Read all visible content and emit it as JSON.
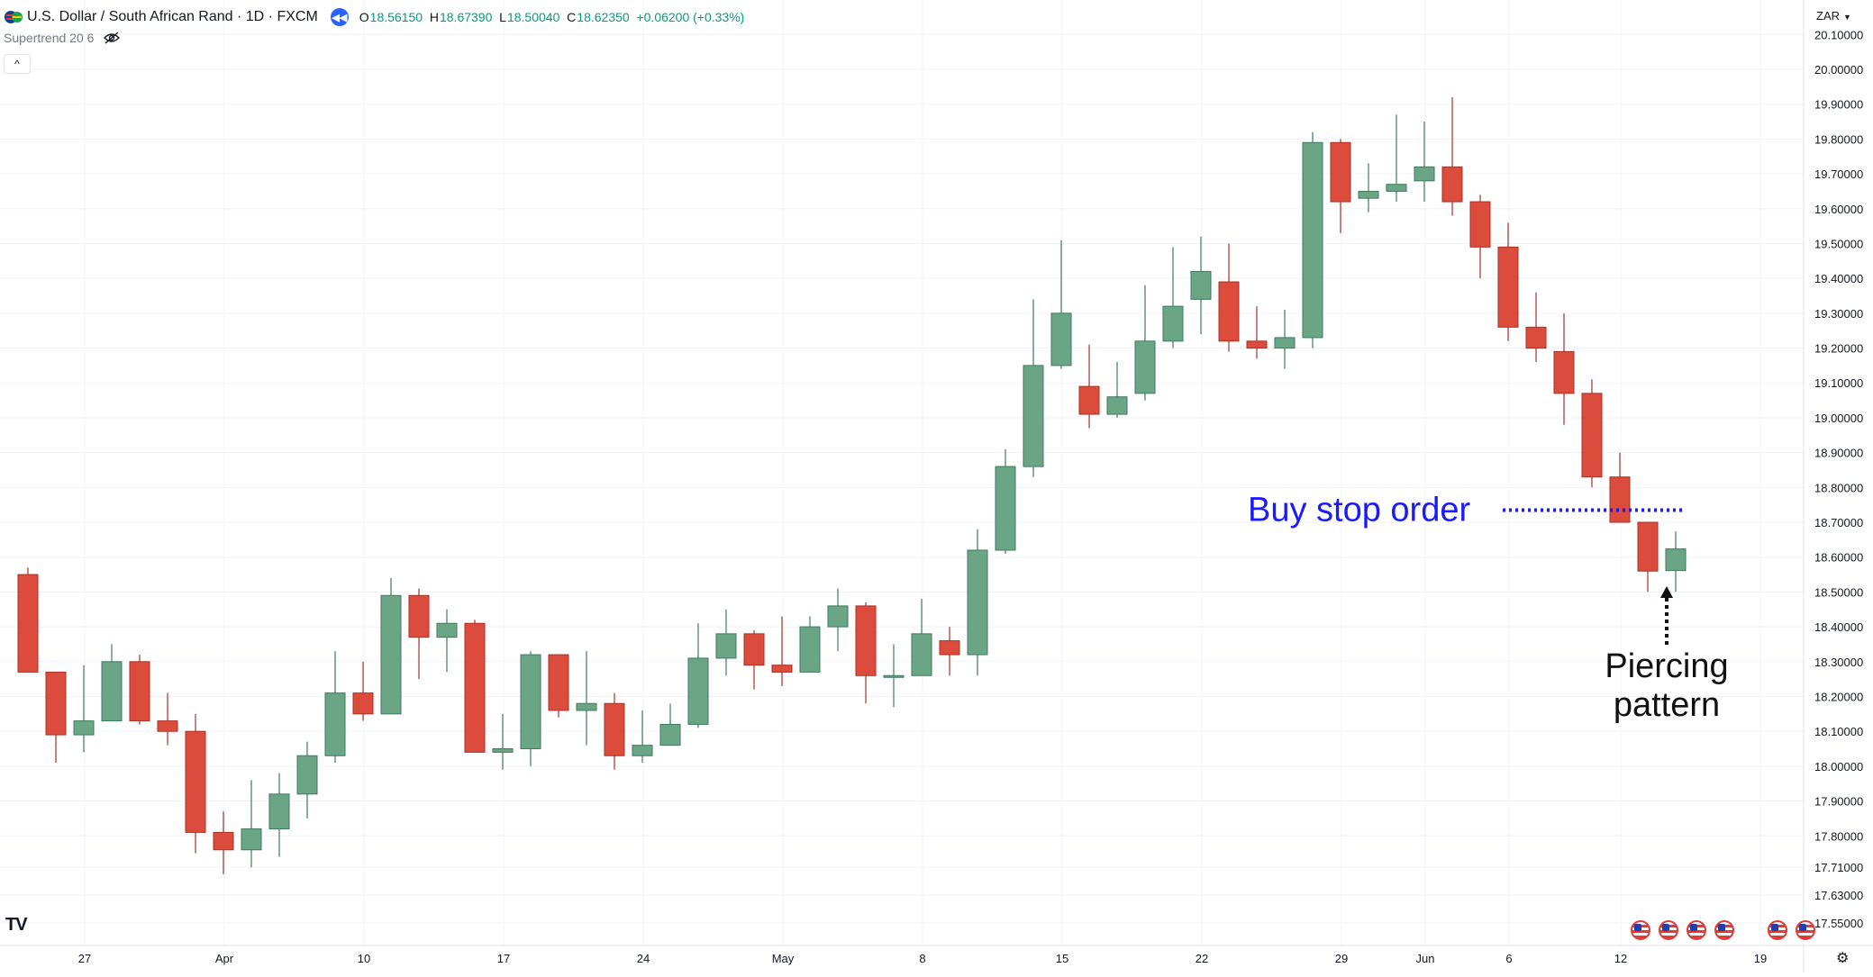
{
  "header": {
    "symbol": "U.S. Dollar / South African Rand · 1D · FXCM",
    "open_label": "O",
    "open": "18.56150",
    "high_label": "H",
    "high": "18.67390",
    "low_label": "L",
    "low": "18.50040",
    "close_label": "C",
    "close": "18.62350",
    "change": "+0.06200 (+0.33%)",
    "flag_icon": "us-za-flag-icon",
    "back_icon": "rewind-icon"
  },
  "indicator": {
    "label": "Supertrend 20 6",
    "icon": "eye-hidden-icon"
  },
  "collapse_icon": "chevron-up-icon",
  "currency": "ZAR",
  "brand": "TV",
  "settings_icon": "gear-icon",
  "colors": {
    "up": "#6aa586",
    "down": "#dc4c3c",
    "annotation_blue": "#1a1aff",
    "text": "#131722",
    "grid": "#f0f3fa"
  },
  "chart_data": {
    "type": "candlestick",
    "y_ticks": [
      "20.10000",
      "20.00000",
      "19.90000",
      "19.80000",
      "19.70000",
      "19.60000",
      "19.50000",
      "19.40000",
      "19.30000",
      "19.20000",
      "19.10000",
      "19.00000",
      "18.90000",
      "18.80000",
      "18.70000",
      "18.60000",
      "18.50000",
      "18.40000",
      "18.30000",
      "18.20000",
      "18.10000",
      "18.00000",
      "17.90000",
      "17.80000",
      "17.71000",
      "17.63000",
      "17.55000"
    ],
    "x_ticks": [
      {
        "label": "27",
        "index": 2
      },
      {
        "label": "Apr",
        "index": 7
      },
      {
        "label": "10",
        "index": 12
      },
      {
        "label": "17",
        "index": 17
      },
      {
        "label": "24",
        "index": 22
      },
      {
        "label": "May",
        "index": 27
      },
      {
        "label": "8",
        "index": 32
      },
      {
        "label": "15",
        "index": 37
      },
      {
        "label": "22",
        "index": 42
      },
      {
        "label": "29",
        "index": 47
      },
      {
        "label": "Jun",
        "index": 50
      },
      {
        "label": "6",
        "index": 53
      },
      {
        "label": "12",
        "index": 57
      },
      {
        "label": "19",
        "index": 62
      }
    ],
    "candles": [
      {
        "o": 18.55,
        "h": 18.57,
        "l": 18.27,
        "c": 18.27
      },
      {
        "o": 18.27,
        "h": 18.27,
        "l": 18.01,
        "c": 18.09
      },
      {
        "o": 18.09,
        "h": 18.29,
        "l": 18.04,
        "c": 18.13
      },
      {
        "o": 18.13,
        "h": 18.35,
        "l": 18.13,
        "c": 18.3
      },
      {
        "o": 18.3,
        "h": 18.32,
        "l": 18.12,
        "c": 18.13
      },
      {
        "o": 18.13,
        "h": 18.21,
        "l": 18.06,
        "c": 18.1
      },
      {
        "o": 18.1,
        "h": 18.15,
        "l": 17.75,
        "c": 17.81
      },
      {
        "o": 17.81,
        "h": 17.87,
        "l": 17.69,
        "c": 17.76
      },
      {
        "o": 17.76,
        "h": 17.96,
        "l": 17.71,
        "c": 17.82
      },
      {
        "o": 17.82,
        "h": 17.98,
        "l": 17.74,
        "c": 17.92
      },
      {
        "o": 17.92,
        "h": 18.07,
        "l": 17.85,
        "c": 18.03
      },
      {
        "o": 18.03,
        "h": 18.33,
        "l": 18.01,
        "c": 18.21
      },
      {
        "o": 18.21,
        "h": 18.3,
        "l": 18.13,
        "c": 18.15
      },
      {
        "o": 18.15,
        "h": 18.54,
        "l": 18.15,
        "c": 18.49
      },
      {
        "o": 18.49,
        "h": 18.51,
        "l": 18.25,
        "c": 18.37
      },
      {
        "o": 18.37,
        "h": 18.45,
        "l": 18.27,
        "c": 18.41
      },
      {
        "o": 18.41,
        "h": 18.42,
        "l": 18.04,
        "c": 18.04
      },
      {
        "o": 18.04,
        "h": 18.15,
        "l": 17.99,
        "c": 18.05
      },
      {
        "o": 18.05,
        "h": 18.33,
        "l": 18.0,
        "c": 18.32
      },
      {
        "o": 18.32,
        "h": 18.32,
        "l": 18.14,
        "c": 18.16
      },
      {
        "o": 18.16,
        "h": 18.33,
        "l": 18.06,
        "c": 18.18
      },
      {
        "o": 18.18,
        "h": 18.21,
        "l": 17.99,
        "c": 18.03
      },
      {
        "o": 18.03,
        "h": 18.16,
        "l": 18.01,
        "c": 18.06
      },
      {
        "o": 18.06,
        "h": 18.18,
        "l": 18.06,
        "c": 18.12
      },
      {
        "o": 18.12,
        "h": 18.41,
        "l": 18.11,
        "c": 18.31
      },
      {
        "o": 18.31,
        "h": 18.45,
        "l": 18.26,
        "c": 18.38
      },
      {
        "o": 18.38,
        "h": 18.39,
        "l": 18.22,
        "c": 18.29
      },
      {
        "o": 18.29,
        "h": 18.43,
        "l": 18.23,
        "c": 18.27
      },
      {
        "o": 18.27,
        "h": 18.43,
        "l": 18.27,
        "c": 18.4
      },
      {
        "o": 18.4,
        "h": 18.51,
        "l": 18.33,
        "c": 18.46
      },
      {
        "o": 18.46,
        "h": 18.47,
        "l": 18.18,
        "c": 18.26
      },
      {
        "o": 18.26,
        "h": 18.35,
        "l": 18.17,
        "c": 18.26
      },
      {
        "o": 18.26,
        "h": 18.48,
        "l": 18.26,
        "c": 18.38
      },
      {
        "o": 18.36,
        "h": 18.4,
        "l": 18.26,
        "c": 18.32
      },
      {
        "o": 18.32,
        "h": 18.68,
        "l": 18.26,
        "c": 18.62
      },
      {
        "o": 18.62,
        "h": 18.91,
        "l": 18.61,
        "c": 18.86
      },
      {
        "o": 18.86,
        "h": 19.34,
        "l": 18.83,
        "c": 19.15
      },
      {
        "o": 19.15,
        "h": 19.51,
        "l": 19.14,
        "c": 19.3
      },
      {
        "o": 19.09,
        "h": 19.21,
        "l": 18.97,
        "c": 19.01
      },
      {
        "o": 19.01,
        "h": 19.16,
        "l": 19.0,
        "c": 19.06
      },
      {
        "o": 19.07,
        "h": 19.38,
        "l": 19.05,
        "c": 19.22
      },
      {
        "o": 19.22,
        "h": 19.49,
        "l": 19.2,
        "c": 19.32
      },
      {
        "o": 19.34,
        "h": 19.52,
        "l": 19.24,
        "c": 19.42
      },
      {
        "o": 19.39,
        "h": 19.5,
        "l": 19.19,
        "c": 19.22
      },
      {
        "o": 19.22,
        "h": 19.32,
        "l": 19.17,
        "c": 19.2
      },
      {
        "o": 19.2,
        "h": 19.31,
        "l": 19.14,
        "c": 19.23
      },
      {
        "o": 19.23,
        "h": 19.82,
        "l": 19.2,
        "c": 19.79
      },
      {
        "o": 19.79,
        "h": 19.8,
        "l": 19.53,
        "c": 19.62
      },
      {
        "o": 19.63,
        "h": 19.73,
        "l": 19.59,
        "c": 19.65
      },
      {
        "o": 19.65,
        "h": 19.87,
        "l": 19.62,
        "c": 19.67
      },
      {
        "o": 19.68,
        "h": 19.85,
        "l": 19.62,
        "c": 19.72
      },
      {
        "o": 19.72,
        "h": 19.92,
        "l": 19.58,
        "c": 19.62
      },
      {
        "o": 19.62,
        "h": 19.64,
        "l": 19.4,
        "c": 19.49
      },
      {
        "o": 19.49,
        "h": 19.56,
        "l": 19.22,
        "c": 19.26
      },
      {
        "o": 19.26,
        "h": 19.36,
        "l": 19.16,
        "c": 19.2
      },
      {
        "o": 19.19,
        "h": 19.3,
        "l": 18.98,
        "c": 19.07
      },
      {
        "o": 19.07,
        "h": 19.11,
        "l": 18.8,
        "c": 18.83
      },
      {
        "o": 18.83,
        "h": 18.9,
        "l": 18.7,
        "c": 18.7
      },
      {
        "o": 18.7,
        "h": 18.7,
        "l": 18.5,
        "c": 18.56
      },
      {
        "o": 18.5615,
        "h": 18.6739,
        "l": 18.5004,
        "c": 18.6235
      }
    ],
    "annotations": {
      "buy_stop_label": "Buy stop order",
      "buy_stop_level": 18.735,
      "pattern_label_line1": "Piercing",
      "pattern_label_line2": "pattern"
    }
  }
}
